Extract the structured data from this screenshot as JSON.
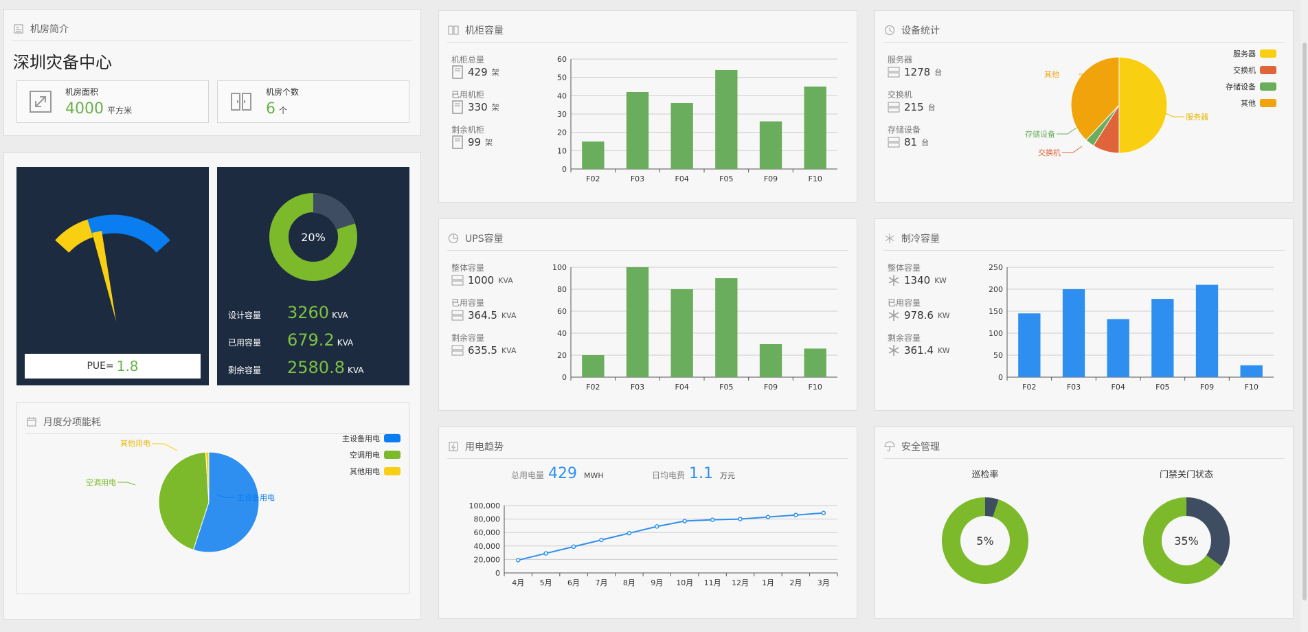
{
  "intro": {
    "title": "机房简介",
    "center_name": "深圳灾备中心",
    "area_label": "机房面积",
    "area_value": "4000",
    "area_unit": "平方米",
    "count_label": "机房个数",
    "count_value": "6",
    "count_unit": "个"
  },
  "pue": {
    "label": "PUE=",
    "value": "1.8"
  },
  "power_capacity": {
    "donut_label": "20%",
    "usage_fraction": 0.2,
    "rows": [
      {
        "label": "设计容量",
        "value": "3260",
        "unit": "KVA"
      },
      {
        "label": "已用容量",
        "value": "679.2",
        "unit": "KVA"
      },
      {
        "label": "剩余容量",
        "value": "2580.8",
        "unit": "KVA"
      }
    ]
  },
  "monthly_energy": {
    "title": "月度分项能耗",
    "legend": [
      "主设备用电",
      "空调用电",
      "其他用电"
    ],
    "slice_labels": {
      "main": "主设备用电",
      "ac": "空调用电",
      "other": "其他用电"
    }
  },
  "cabinet": {
    "title": "机柜容量",
    "stats": [
      {
        "label": "机柜总量",
        "value": "429",
        "unit": "架"
      },
      {
        "label": "已用机柜",
        "value": "330",
        "unit": "架"
      },
      {
        "label": "剩余机柜",
        "value": "99",
        "unit": "架"
      }
    ]
  },
  "device": {
    "title": "设备统计",
    "stats": [
      {
        "label": "服务器",
        "value": "1278",
        "unit": "台"
      },
      {
        "label": "交换机",
        "value": "215",
        "unit": "台"
      },
      {
        "label": "存储设备",
        "value": "81",
        "unit": "台"
      }
    ],
    "legend": [
      "服务器",
      "交换机",
      "存储设备",
      "其他"
    ],
    "slice_labels": {
      "server": "服务器",
      "switch": "交换机",
      "storage": "存储设备",
      "other": "其他"
    }
  },
  "ups": {
    "title": "UPS容量",
    "stats": [
      {
        "label": "整体容量",
        "value": "1000",
        "unit": "KVA"
      },
      {
        "label": "已用容量",
        "value": "364.5",
        "unit": "KVA"
      },
      {
        "label": "剩余容量",
        "value": "635.5",
        "unit": "KVA"
      }
    ]
  },
  "cooling": {
    "title": "制冷容量",
    "stats": [
      {
        "label": "整体容量",
        "value": "1340",
        "unit": "KW"
      },
      {
        "label": "已用容量",
        "value": "978.6",
        "unit": "KW"
      },
      {
        "label": "剩余容量",
        "value": "361.4",
        "unit": "KW"
      }
    ]
  },
  "trend": {
    "title": "用电趋势",
    "total_label": "总用电量",
    "total_value": "429",
    "total_unit": "MWH",
    "daily_label": "日均电费",
    "daily_value": "1.1",
    "daily_unit": "万元"
  },
  "security": {
    "title": "安全管理",
    "patrol_label": "巡检率",
    "patrol_value": "5%",
    "patrol_fraction": 0.05,
    "door_label": "门禁关门状态",
    "door_value": "35%",
    "door_fraction": 0.35
  },
  "colors": {
    "green": "#6aad5c",
    "blue": "#2e8ff0",
    "yellow": "#f9cf12",
    "orange": "#f0a30a",
    "red": "#e0643a",
    "lime": "#7dba2b",
    "navy": "#1c2b40",
    "slate": "#3f4d63"
  },
  "chart_data": [
    {
      "type": "bar",
      "categories": [
        "F02",
        "F03",
        "F04",
        "F05",
        "F09",
        "F10"
      ],
      "values": [
        15,
        42,
        36,
        54,
        26,
        45
      ],
      "ylim": [
        0,
        60
      ],
      "yticks": [
        "0",
        "10",
        "20",
        "30",
        "40",
        "50",
        "60"
      ]
    },
    {
      "type": "bar",
      "categories": [
        "F02",
        "F03",
        "F04",
        "F05",
        "F09",
        "F10"
      ],
      "values": [
        20,
        100,
        80,
        90,
        30,
        26
      ],
      "ylim": [
        0,
        100
      ],
      "yticks": [
        "0",
        "20",
        "40",
        "60",
        "80",
        "100"
      ]
    },
    {
      "type": "bar",
      "categories": [
        "F02",
        "F03",
        "F04",
        "F05",
        "F09",
        "F10"
      ],
      "values": [
        145,
        200,
        132,
        178,
        210,
        27
      ],
      "ylim": [
        0,
        250
      ],
      "yticks": [
        "0",
        "50",
        "100",
        "150",
        "200",
        "250"
      ]
    },
    {
      "type": "pie",
      "labels": [
        "服务器",
        "交换机",
        "存储设备",
        "其他"
      ],
      "values": [
        50,
        9,
        3,
        38
      ]
    },
    {
      "type": "pie",
      "labels": [
        "主设备用电",
        "空调用电",
        "其他用电"
      ],
      "values": [
        55,
        44,
        1
      ]
    },
    {
      "type": "line",
      "categories": [
        "4月",
        "5月",
        "6月",
        "7月",
        "8月",
        "9月",
        "10月",
        "11月",
        "12月",
        "1月",
        "2月",
        "3月"
      ],
      "values": [
        19000,
        29000,
        39000,
        49000,
        59000,
        69000,
        77000,
        79000,
        80000,
        83000,
        86000,
        89000
      ],
      "ylim": [
        0,
        100000
      ],
      "yticks": [
        "0",
        "20,000",
        "40,000",
        "60,000",
        "80,000",
        "100,000"
      ]
    }
  ]
}
